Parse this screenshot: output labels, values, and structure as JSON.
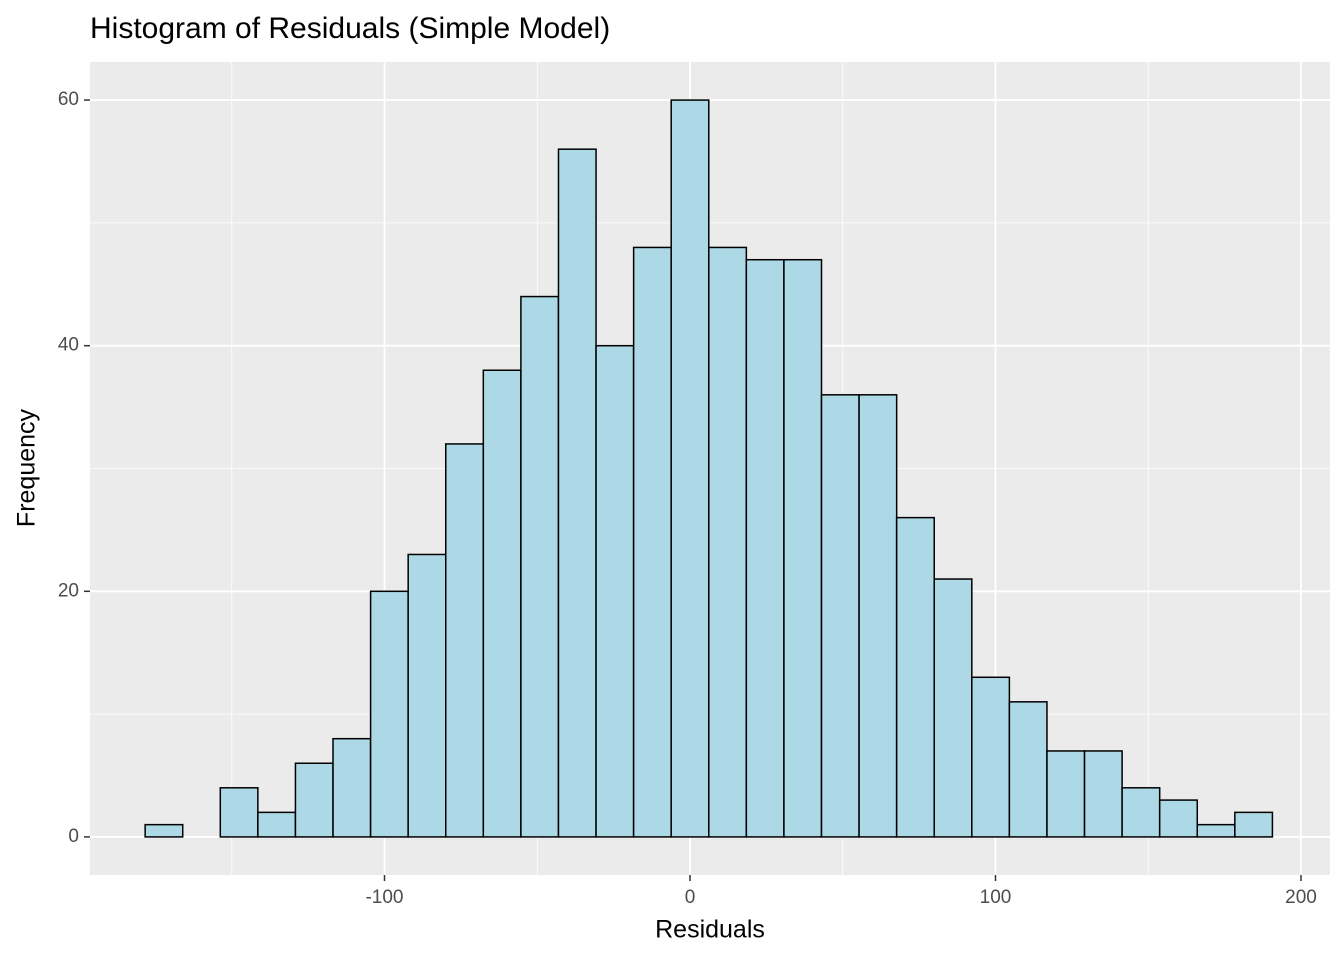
{
  "chart_data": {
    "type": "histogram",
    "title": "Histogram of Residuals (Simple Model)",
    "x_label": "Residuals",
    "y_label": "Frequency",
    "bins": [
      -178.35,
      -166.05,
      -153.75,
      -141.45,
      -129.15,
      -116.85,
      -104.55,
      -92.25,
      -79.95,
      -67.65,
      -55.35,
      -43.05,
      -30.75,
      -18.45,
      -6.15,
      6.15,
      18.45,
      30.75,
      43.05,
      55.35,
      67.65,
      79.95,
      92.25,
      104.55,
      116.85,
      129.15,
      141.45,
      153.75,
      166.05,
      178.35,
      190.65
    ],
    "values": [
      1,
      0,
      4,
      2,
      6,
      8,
      20,
      23,
      32,
      38,
      44,
      56,
      40,
      48,
      60,
      48,
      47,
      47,
      36,
      36,
      26,
      21,
      13,
      11,
      7,
      7,
      4,
      3,
      1,
      2
    ],
    "color": "#add8e6",
    "edge_color": "#000000",
    "xlim": [
      -196.4,
      209.5
    ],
    "ylim": [
      -3.1,
      63.1
    ],
    "xticks": [
      -100,
      0,
      100,
      200
    ],
    "yticks": [
      0,
      20,
      40,
      60
    ],
    "grid": true
  }
}
